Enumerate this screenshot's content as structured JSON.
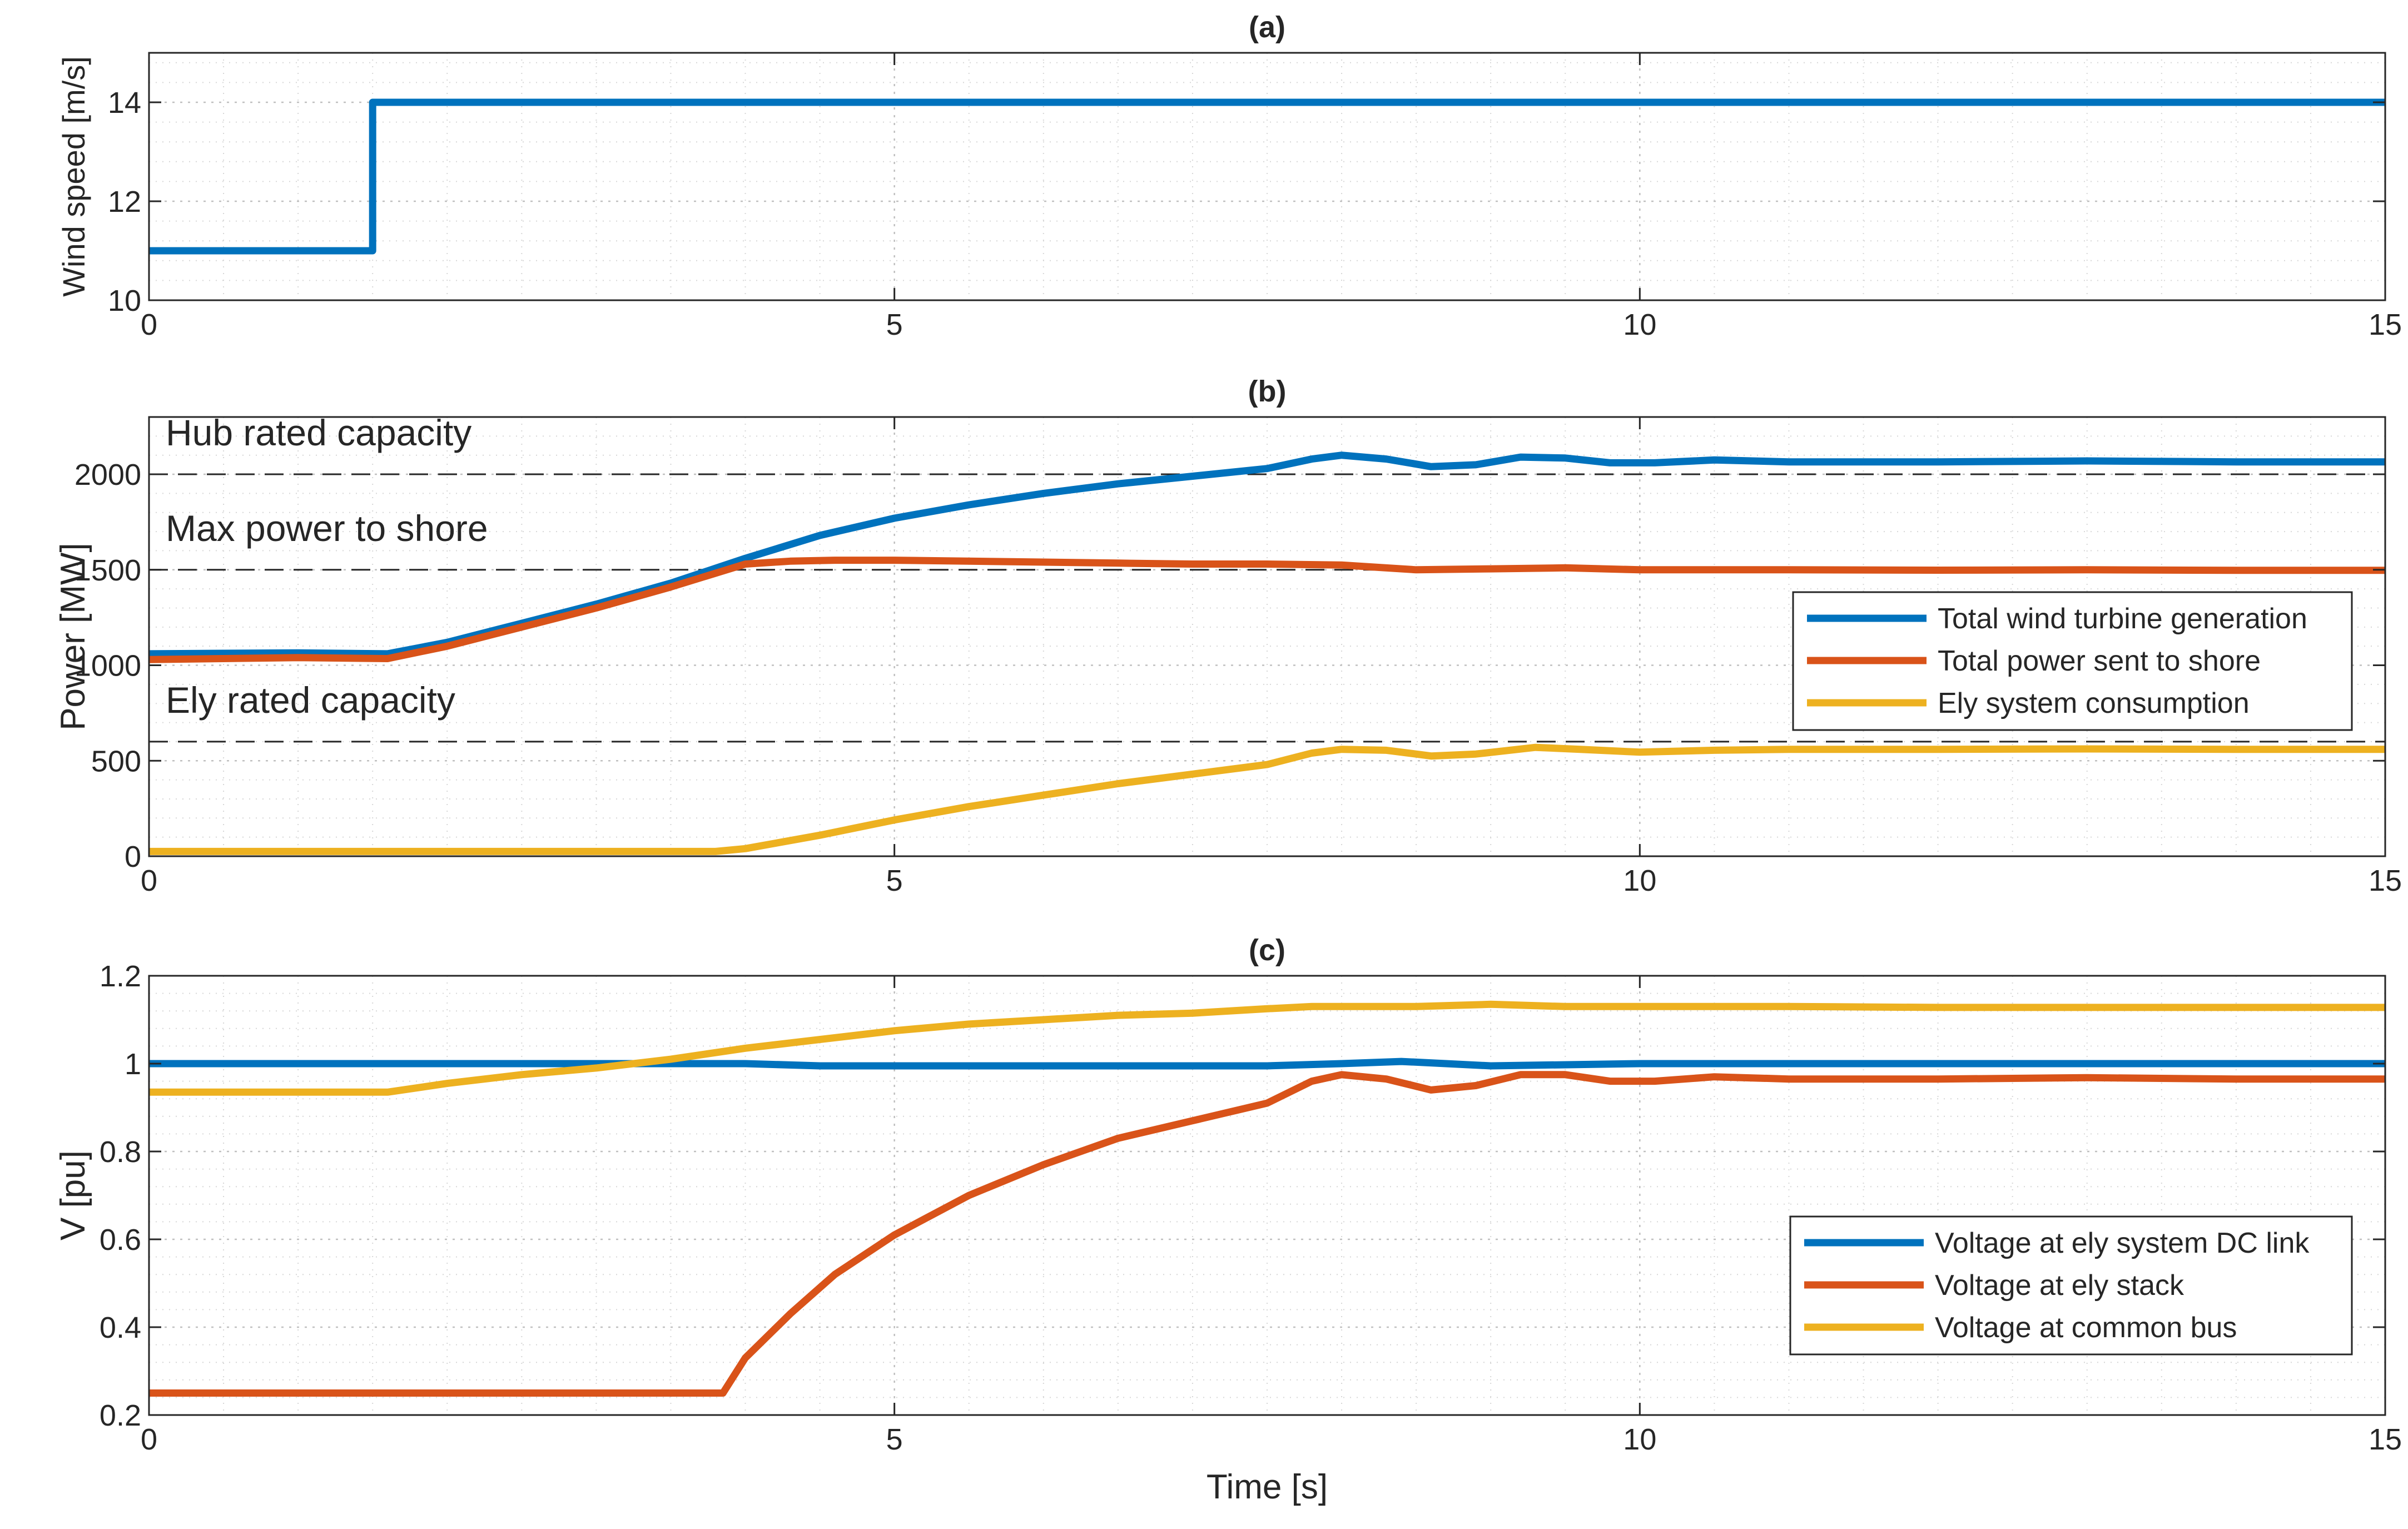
{
  "figure": {
    "colors": {
      "blue": "#0072BD",
      "orange": "#D95319",
      "yellow": "#EDB120",
      "axis": "#262626"
    }
  },
  "chart_data": [
    {
      "type": "line",
      "panel": "a",
      "title": "(a)",
      "xlabel": "",
      "ylabel": "Wind speed [m/s]",
      "xlim": [
        0,
        15
      ],
      "ylim": [
        10,
        15
      ],
      "xticks": [
        0,
        5,
        10,
        15
      ],
      "yticks": [
        10,
        12,
        14
      ],
      "grid": true,
      "series": [
        {
          "name": "Wind speed",
          "color": "#0072BD",
          "points": [
            [
              0,
              11.0
            ],
            [
              1.5,
              11.0
            ],
            [
              1.5,
              14.0
            ],
            [
              15,
              14.0
            ]
          ]
        }
      ],
      "annotations": [],
      "reference_lines": [],
      "legend": null
    },
    {
      "type": "line",
      "panel": "b",
      "title": "(b)",
      "xlabel": "",
      "ylabel": "Power [MW]",
      "xlim": [
        0,
        15
      ],
      "ylim": [
        0,
        2300
      ],
      "xticks": [
        0,
        5,
        10,
        15
      ],
      "yticks": [
        0,
        500,
        1000,
        1500,
        2000
      ],
      "grid": true,
      "reference_lines": [
        {
          "y": 2000,
          "label": "Hub rated capacity"
        },
        {
          "y": 1500,
          "label": "Max power to shore"
        },
        {
          "y": 600,
          "label": "Ely rated capacity"
        }
      ],
      "series": [
        {
          "name": "Total wind turbine generation",
          "color": "#0072BD",
          "points": [
            [
              0,
              1060
            ],
            [
              1.0,
              1065
            ],
            [
              1.6,
              1060
            ],
            [
              2.0,
              1120
            ],
            [
              2.5,
              1220
            ],
            [
              3.0,
              1320
            ],
            [
              3.5,
              1430
            ],
            [
              4.0,
              1560
            ],
            [
              4.5,
              1680
            ],
            [
              5.0,
              1770
            ],
            [
              5.5,
              1840
            ],
            [
              6.0,
              1900
            ],
            [
              6.5,
              1950
            ],
            [
              7.0,
              1990
            ],
            [
              7.5,
              2030
            ],
            [
              7.8,
              2080
            ],
            [
              8.0,
              2100
            ],
            [
              8.3,
              2080
            ],
            [
              8.6,
              2040
            ],
            [
              8.9,
              2050
            ],
            [
              9.2,
              2090
            ],
            [
              9.5,
              2085
            ],
            [
              9.8,
              2060
            ],
            [
              10.1,
              2060
            ],
            [
              10.5,
              2075
            ],
            [
              11.0,
              2065
            ],
            [
              12.0,
              2065
            ],
            [
              13.0,
              2070
            ],
            [
              14.0,
              2065
            ],
            [
              15.0,
              2065
            ]
          ]
        },
        {
          "name": "Total power sent to shore",
          "color": "#D95319",
          "points": [
            [
              0,
              1030
            ],
            [
              1.0,
              1040
            ],
            [
              1.6,
              1035
            ],
            [
              2.0,
              1100
            ],
            [
              2.5,
              1200
            ],
            [
              3.0,
              1300
            ],
            [
              3.5,
              1410
            ],
            [
              4.0,
              1530
            ],
            [
              4.3,
              1545
            ],
            [
              4.6,
              1550
            ],
            [
              5.0,
              1550
            ],
            [
              5.5,
              1545
            ],
            [
              6.0,
              1540
            ],
            [
              6.5,
              1535
            ],
            [
              7.0,
              1530
            ],
            [
              7.5,
              1530
            ],
            [
              8.0,
              1525
            ],
            [
              8.5,
              1500
            ],
            [
              9.0,
              1505
            ],
            [
              9.5,
              1510
            ],
            [
              10.0,
              1500
            ],
            [
              11.0,
              1500
            ],
            [
              12.0,
              1498
            ],
            [
              13.0,
              1500
            ],
            [
              14.0,
              1497
            ],
            [
              15.0,
              1497
            ]
          ]
        },
        {
          "name": "Ely system consumption",
          "color": "#EDB120",
          "points": [
            [
              0,
              25
            ],
            [
              1.0,
              25
            ],
            [
              2.0,
              25
            ],
            [
              3.0,
              25
            ],
            [
              3.8,
              25
            ],
            [
              4.0,
              40
            ],
            [
              4.5,
              110
            ],
            [
              5.0,
              190
            ],
            [
              5.5,
              260
            ],
            [
              6.0,
              320
            ],
            [
              6.5,
              380
            ],
            [
              7.0,
              430
            ],
            [
              7.5,
              480
            ],
            [
              7.8,
              540
            ],
            [
              8.0,
              560
            ],
            [
              8.3,
              555
            ],
            [
              8.6,
              525
            ],
            [
              8.9,
              535
            ],
            [
              9.3,
              570
            ],
            [
              9.6,
              560
            ],
            [
              10.0,
              545
            ],
            [
              10.5,
              555
            ],
            [
              11.0,
              560
            ],
            [
              12.0,
              560
            ],
            [
              13.0,
              562
            ],
            [
              14.0,
              560
            ],
            [
              15.0,
              560
            ]
          ]
        }
      ],
      "annotations": [
        {
          "text": "Hub rated capacity"
        },
        {
          "text": "Max power to shore"
        },
        {
          "text": "Ely rated capacity"
        }
      ],
      "legend": {
        "placement": "center-right",
        "entries": [
          "Total wind turbine generation",
          "Total power sent to shore",
          "Ely system consumption"
        ]
      }
    },
    {
      "type": "line",
      "panel": "c",
      "title": "(c)",
      "xlabel": "Time [s]",
      "ylabel": "V [pu]",
      "xlim": [
        0,
        15
      ],
      "ylim": [
        0.2,
        1.2
      ],
      "xticks": [
        0,
        5,
        10,
        15
      ],
      "yticks": [
        0.2,
        0.4,
        0.6,
        0.8,
        1,
        1.2
      ],
      "grid": true,
      "reference_lines": [],
      "series": [
        {
          "name": "Voltage at ely system DC link",
          "color": "#0072BD",
          "points": [
            [
              0,
              1.0
            ],
            [
              2.0,
              1.0
            ],
            [
              4.0,
              1.0
            ],
            [
              4.5,
              0.995
            ],
            [
              5.0,
              0.995
            ],
            [
              6.0,
              0.995
            ],
            [
              7.0,
              0.995
            ],
            [
              7.5,
              0.995
            ],
            [
              8.0,
              1.0
            ],
            [
              8.4,
              1.005
            ],
            [
              8.7,
              1.0
            ],
            [
              9.0,
              0.995
            ],
            [
              10.0,
              1.0
            ],
            [
              12.0,
              1.0
            ],
            [
              15.0,
              1.0
            ]
          ]
        },
        {
          "name": "Voltage at ely stack",
          "color": "#D95319",
          "points": [
            [
              0,
              0.25
            ],
            [
              1.0,
              0.25
            ],
            [
              2.0,
              0.25
            ],
            [
              3.0,
              0.25
            ],
            [
              3.85,
              0.25
            ],
            [
              4.0,
              0.33
            ],
            [
              4.3,
              0.43
            ],
            [
              4.6,
              0.52
            ],
            [
              5.0,
              0.61
            ],
            [
              5.5,
              0.7
            ],
            [
              6.0,
              0.77
            ],
            [
              6.5,
              0.83
            ],
            [
              7.0,
              0.87
            ],
            [
              7.5,
              0.91
            ],
            [
              7.8,
              0.96
            ],
            [
              8.0,
              0.975
            ],
            [
              8.3,
              0.965
            ],
            [
              8.6,
              0.94
            ],
            [
              8.9,
              0.95
            ],
            [
              9.2,
              0.975
            ],
            [
              9.5,
              0.975
            ],
            [
              9.8,
              0.96
            ],
            [
              10.1,
              0.96
            ],
            [
              10.5,
              0.97
            ],
            [
              11.0,
              0.965
            ],
            [
              12.0,
              0.965
            ],
            [
              13.0,
              0.968
            ],
            [
              14.0,
              0.965
            ],
            [
              15.0,
              0.965
            ]
          ]
        },
        {
          "name": "Voltage at common bus",
          "color": "#EDB120",
          "points": [
            [
              0,
              0.935
            ],
            [
              1.0,
              0.935
            ],
            [
              1.6,
              0.935
            ],
            [
              2.0,
              0.955
            ],
            [
              2.5,
              0.975
            ],
            [
              3.0,
              0.99
            ],
            [
              3.5,
              1.01
            ],
            [
              4.0,
              1.035
            ],
            [
              4.5,
              1.055
            ],
            [
              5.0,
              1.075
            ],
            [
              5.5,
              1.09
            ],
            [
              6.0,
              1.1
            ],
            [
              6.5,
              1.11
            ],
            [
              7.0,
              1.115
            ],
            [
              7.5,
              1.125
            ],
            [
              7.8,
              1.13
            ],
            [
              8.0,
              1.13
            ],
            [
              8.5,
              1.13
            ],
            [
              9.0,
              1.135
            ],
            [
              9.5,
              1.13
            ],
            [
              10.0,
              1.13
            ],
            [
              11.0,
              1.13
            ],
            [
              12.0,
              1.128
            ],
            [
              13.0,
              1.128
            ],
            [
              14.0,
              1.128
            ],
            [
              15.0,
              1.128
            ]
          ]
        }
      ],
      "annotations": [],
      "legend": {
        "placement": "bottom-right",
        "entries": [
          "Voltage at ely system DC link",
          "Voltage at ely stack",
          "Voltage at common bus"
        ]
      }
    }
  ]
}
